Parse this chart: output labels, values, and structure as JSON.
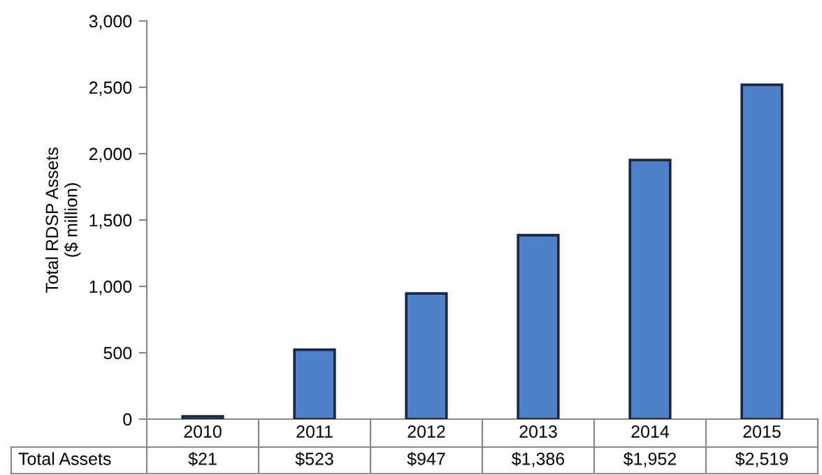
{
  "chart_data": {
    "type": "bar",
    "ylabel": "Total RDSP Assets\n($ million)",
    "categories": [
      "2010",
      "2011",
      "2012",
      "2013",
      "2014",
      "2015"
    ],
    "values": [
      21,
      523,
      947,
      1386,
      1952,
      2519
    ],
    "value_labels": [
      "$21",
      "$523",
      "$947",
      "$1,386",
      "$1,952",
      "$2,519"
    ],
    "color": "#4f81c9",
    "ylim": [
      0,
      3000
    ],
    "yticks": [
      {
        "value": 0,
        "label": "0"
      },
      {
        "value": 500,
        "label": "500"
      },
      {
        "value": 1000,
        "label": "1,000"
      },
      {
        "value": 1500,
        "label": "1,500"
      },
      {
        "value": 2000,
        "label": "2,000"
      },
      {
        "value": 2500,
        "label": "2,500"
      },
      {
        "value": 3000,
        "label": "3,000"
      }
    ],
    "annotations": [
      "Total Assets"
    ],
    "grid": false,
    "legend": false
  }
}
